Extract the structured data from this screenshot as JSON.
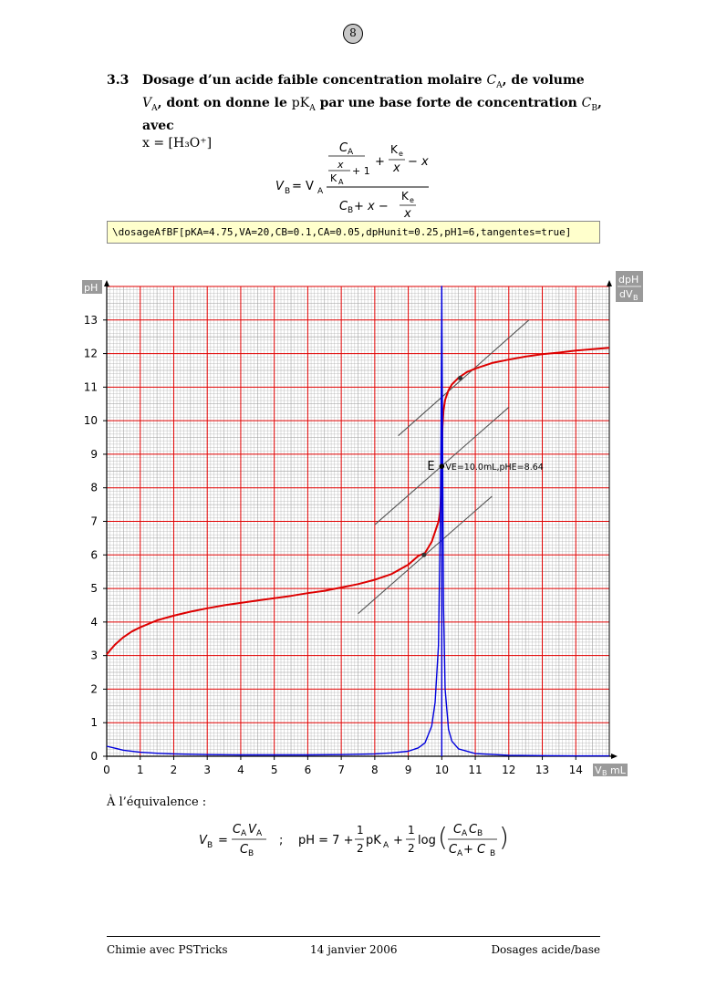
{
  "page": {
    "number": "8",
    "section_number": "3.3",
    "section_title_part1": "Dosage d’un acide faible concentration molaire ",
    "section_title_CA": "C",
    "section_title_part2": ", de volume ",
    "section_title_VA": "V",
    "section_title_part3": ", dont on donne le ",
    "section_title_pKA": "pK",
    "section_title_part4": " par une base forte de concentration ",
    "section_title_CB": "C",
    "section_title_part5": ", avec",
    "section_title_x": "x = [H₃O⁺]",
    "code": "\\dosageAfBF[pKA=4.75,VA=20,CB=0.1,CA=0.05,dpHunit=0.25,pH1=6,tangentes=true]",
    "equivalence_label": "À l’équivalence :",
    "footer_left": "Chimie avec PSTricks",
    "footer_center": "14 janvier 2006",
    "footer_right": "Dosages acide/base"
  },
  "formula1": {
    "lhs": "V",
    "lhs_sub": "B",
    "eq": " = V",
    "eq_sub": "A",
    "num_frac_num": "C",
    "num_frac_num_sub": "A",
    "num_inner_num": "x",
    "num_inner_den": "K",
    "num_inner_den_sub": "A",
    "plus_one": "+ 1",
    "num_plus": "+",
    "ke": "K",
    "ke_sub": "e",
    "ke_den": "x",
    "minus_x": "− x",
    "den_cb": "C",
    "den_cb_sub": "B",
    "den_plus_x": " + x −",
    "den_ke": "K",
    "den_ke_sub": "e",
    "den_ke_den": "x"
  },
  "formula2": {
    "vb": "V",
    "vb_sub": "B",
    "eq": "=",
    "num": "C",
    "num_sub1": "A",
    "num_v": "V",
    "num_sub2": "A",
    "den": "C",
    "den_sub": "B",
    "sep": ";",
    "ph": "pH = 7 +",
    "half1_num": "1",
    "half1_den": "2",
    "pka": "pK",
    "pka_sub": "A",
    "plus": "+",
    "half2_num": "1",
    "half2_den": "2",
    "log": "log",
    "log_num": "C",
    "log_num_sub1": "A",
    "log_num_c2": "C",
    "log_num_sub2": "B",
    "log_den": "C",
    "log_den_sub1": "A",
    "log_den_plus": " + C",
    "log_den_sub2": "B"
  },
  "chart_data": {
    "type": "line",
    "title": "",
    "xlabel": "V",
    "xlabel_sub": "B",
    "xlabel_unit": "mL",
    "ylabel": "pH",
    "ylabel2_num": "dpH",
    "ylabel2_den": "dV",
    "ylabel2_den_sub": "B",
    "xlim": [
      0,
      15
    ],
    "ylim": [
      0,
      14
    ],
    "x_ticks": [
      0,
      1,
      2,
      3,
      4,
      5,
      6,
      7,
      8,
      9,
      10,
      11,
      12,
      13,
      14
    ],
    "y_ticks": [
      0,
      1,
      2,
      3,
      4,
      5,
      6,
      7,
      8,
      9,
      10,
      11,
      12,
      13
    ],
    "grid": true,
    "params": {
      "pKA": 4.75,
      "VA": 20,
      "CB": 0.1,
      "CA": 0.05,
      "dpHunit": 0.25
    },
    "equivalence": {
      "x": 10.0,
      "y": 8.64,
      "marker": "E",
      "label": "VE=10.0mL,pHE=8.64"
    },
    "tangent_points": [
      {
        "x": 9.47,
        "y": 6.0
      },
      {
        "x": 10.55,
        "y": 11.27
      }
    ],
    "tangents": [
      {
        "x": [
          7.5,
          11.5
        ],
        "y": [
          4.25,
          7.75
        ]
      },
      {
        "x": [
          8.7,
          12.6
        ],
        "y": [
          9.55,
          13.0
        ]
      },
      {
        "x": [
          8.0,
          12.0
        ],
        "y": [
          6.9,
          10.4
        ]
      }
    ],
    "series": [
      {
        "name": "pH",
        "color": "#dd0000",
        "x": [
          0,
          0.1,
          0.25,
          0.5,
          0.75,
          1,
          1.5,
          2,
          2.5,
          3,
          3.5,
          4,
          4.5,
          5,
          5.5,
          6,
          6.5,
          7,
          7.5,
          8,
          8.5,
          9,
          9.3,
          9.5,
          9.7,
          9.8,
          9.9,
          9.95,
          9.98,
          10.0,
          10.02,
          10.05,
          10.1,
          10.2,
          10.3,
          10.5,
          10.75,
          11,
          11.5,
          12,
          12.5,
          13,
          13.5,
          14,
          14.5,
          15
        ],
        "values": [
          3.03,
          3.16,
          3.33,
          3.55,
          3.72,
          3.84,
          4.05,
          4.19,
          4.31,
          4.41,
          4.5,
          4.57,
          4.64,
          4.71,
          4.78,
          4.86,
          4.93,
          5.03,
          5.13,
          5.26,
          5.43,
          5.71,
          5.97,
          6.06,
          6.39,
          6.69,
          6.99,
          7.3,
          7.8,
          8.64,
          9.8,
          10.3,
          10.62,
          10.91,
          11.08,
          11.28,
          11.45,
          11.55,
          11.72,
          11.82,
          11.91,
          11.98,
          12.03,
          12.09,
          12.13,
          12.17
        ]
      },
      {
        "name": "dpH/dVB",
        "color": "#0000dd",
        "x": [
          0,
          0.25,
          0.5,
          1,
          1.5,
          2,
          3,
          4,
          5,
          6,
          7,
          8,
          8.5,
          9,
          9.3,
          9.5,
          9.7,
          9.8,
          9.9,
          9.95,
          9.98,
          10.0,
          10.02,
          10.05,
          10.1,
          10.2,
          10.3,
          10.5,
          11,
          12,
          13,
          14,
          15
        ],
        "values": [
          0.3,
          0.24,
          0.18,
          0.12,
          0.09,
          0.07,
          0.05,
          0.04,
          0.04,
          0.04,
          0.05,
          0.07,
          0.1,
          0.15,
          0.25,
          0.4,
          0.9,
          1.6,
          3.3,
          6.5,
          10,
          14,
          10,
          4.5,
          2.0,
          0.8,
          0.45,
          0.22,
          0.08,
          0.03,
          0.02,
          0.01,
          0.01
        ]
      }
    ]
  }
}
